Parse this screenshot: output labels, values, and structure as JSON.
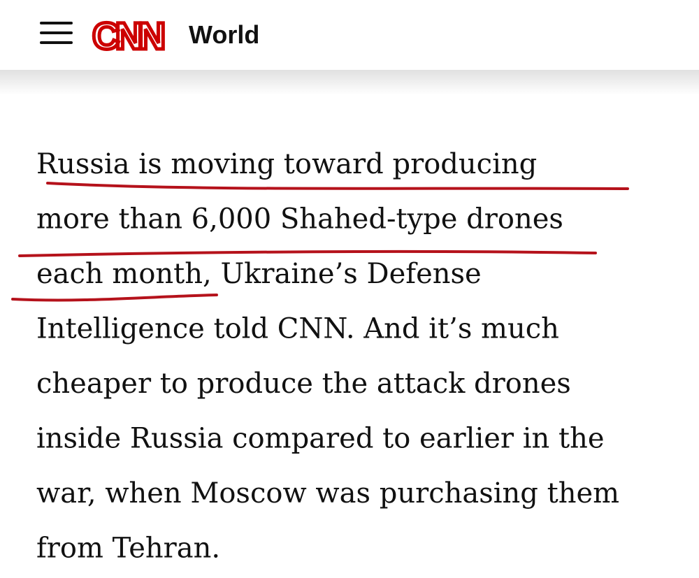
{
  "header": {
    "logo": "CNN",
    "section": "World"
  },
  "article": {
    "lines": [
      "Russia is moving toward producing",
      "more than 6,000 Shahed-type drones",
      "each month, Ukraine’s Defense",
      "Intelligence told CNN. And it’s much",
      "cheaper to produce the attack drones",
      "inside Russia compared to earlier in the",
      "war, when Moscow was purchasing them",
      "from Tehran."
    ]
  }
}
